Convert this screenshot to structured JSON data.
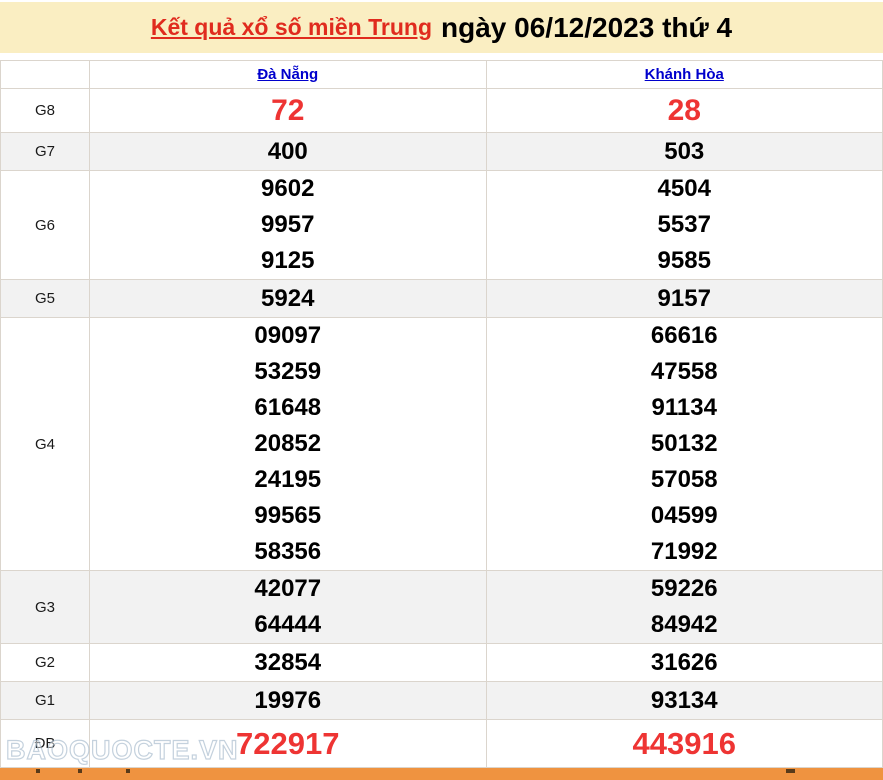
{
  "page": {
    "title_link": "Kết quả xổ số miền Trung",
    "title_date": "ngày 06/12/2023 thứ 4"
  },
  "table": {
    "columns": [
      "Đà Nẵng",
      "Khánh Hòa"
    ],
    "rows": [
      {
        "label": "G8",
        "danang": [
          "72"
        ],
        "khanhhoa": [
          "28"
        ],
        "style": "g8"
      },
      {
        "label": "G7",
        "danang": [
          "400"
        ],
        "khanhhoa": [
          "503"
        ],
        "style": "normal"
      },
      {
        "label": "G6",
        "danang": [
          "9602",
          "9957",
          "9125"
        ],
        "khanhhoa": [
          "4504",
          "5537",
          "9585"
        ],
        "style": "normal"
      },
      {
        "label": "G5",
        "danang": [
          "5924"
        ],
        "khanhhoa": [
          "9157"
        ],
        "style": "normal"
      },
      {
        "label": "G4",
        "danang": [
          "09097",
          "53259",
          "61648",
          "20852",
          "24195",
          "99565",
          "58356"
        ],
        "khanhhoa": [
          "66616",
          "47558",
          "91134",
          "50132",
          "57058",
          "04599",
          "71992"
        ],
        "style": "normal"
      },
      {
        "label": "G3",
        "danang": [
          "42077",
          "64444"
        ],
        "khanhhoa": [
          "59226",
          "84942"
        ],
        "style": "normal"
      },
      {
        "label": "G2",
        "danang": [
          "32854"
        ],
        "khanhhoa": [
          "31626"
        ],
        "style": "normal"
      },
      {
        "label": "G1",
        "danang": [
          "19976"
        ],
        "khanhhoa": [
          "93134"
        ],
        "style": "normal"
      },
      {
        "label": "ĐB",
        "danang": [
          "722917"
        ],
        "khanhhoa": [
          "443916"
        ],
        "style": "db"
      }
    ]
  },
  "watermark": "BAOQUOCTE.VN",
  "colors": {
    "title_bg": "#faeec2",
    "title_link_red": "#e02b1e",
    "number_red": "#ee3433",
    "link_blue": "#0000cc",
    "row_alt_bg": "#f2f2f2",
    "border": "#dbd5cd",
    "bottom_bar_orange": "#ef9340"
  }
}
